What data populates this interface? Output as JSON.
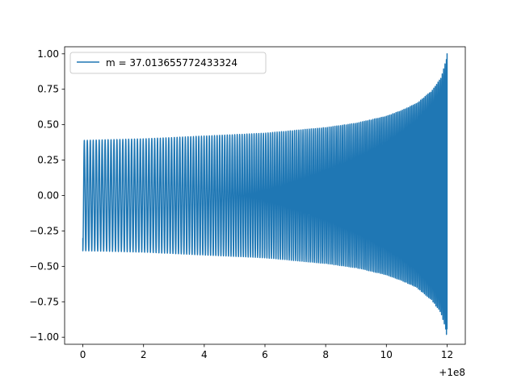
{
  "chart_data": {
    "type": "line",
    "title": "",
    "xlabel": "",
    "ylabel": "",
    "x_offset_label": "+1e8",
    "xlim": [
      -0.6,
      12.6
    ],
    "ylim": [
      -1.05,
      1.05
    ],
    "x_ticks": [
      0,
      2,
      4,
      6,
      8,
      10,
      12
    ],
    "x_tick_labels": [
      "0",
      "2",
      "4",
      "6",
      "8",
      "10",
      "12"
    ],
    "y_ticks": [
      -1.0,
      -0.75,
      -0.5,
      -0.25,
      0.0,
      0.25,
      0.5,
      0.75,
      1.0
    ],
    "y_tick_labels": [
      "−1.00",
      "−0.75",
      "−0.50",
      "−0.25",
      "0.00",
      "0.25",
      "0.50",
      "0.75",
      "1.00"
    ],
    "grid": false,
    "legend_position": "upper-left",
    "series": [
      {
        "name": "m = 37.013655772433324",
        "color": "#1f77b4",
        "x_range": [
          0,
          12
        ],
        "start_value": -0.3,
        "envelope": {
          "x": [
            0,
            0.1,
            2,
            4,
            6,
            8,
            9,
            10,
            10.5,
            11,
            11.5,
            11.8,
            12
          ],
          "amplitude": [
            0.39,
            0.39,
            0.4,
            0.42,
            0.44,
            0.48,
            0.51,
            0.56,
            0.6,
            0.65,
            0.74,
            0.83,
            0.98
          ]
        },
        "peak_value": 1.0,
        "trough_value": -0.98,
        "cycles": 170
      }
    ]
  }
}
